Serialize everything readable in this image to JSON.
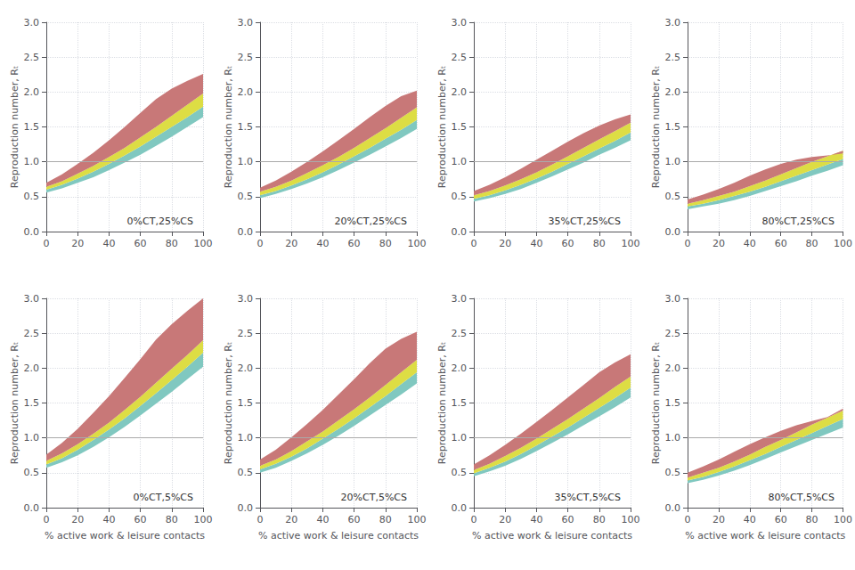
{
  "chart_data": [
    {
      "type": "band",
      "annotation": "0%CT,25%CS",
      "ylabel": "Reproduction number, Rₜ",
      "x": [
        0,
        10,
        20,
        30,
        40,
        50,
        60,
        70,
        80,
        90,
        100
      ],
      "xlim": [
        0,
        100
      ],
      "xticks": [
        0,
        20,
        40,
        60,
        80,
        100
      ],
      "ylim": [
        0,
        3
      ],
      "yticks": [
        {
          "value": 0,
          "label": "0.0"
        },
        0.5,
        {
          "value": 1,
          "label": "1.0"
        },
        1.5,
        {
          "value": 2,
          "label": "2.0"
        },
        2.5,
        {
          "value": 3,
          "label": "3.0"
        }
      ],
      "grid": true,
      "reference_line": {
        "y": 1.0,
        "color": "#aaaaaa"
      },
      "series": [
        {
          "color": "#80C8C0",
          "low": [
            0.56,
            0.62,
            0.7,
            0.78,
            0.88,
            0.99,
            1.1,
            1.23,
            1.36,
            1.5,
            1.64
          ],
          "high": [
            0.6,
            0.67,
            0.76,
            0.86,
            0.97,
            1.09,
            1.22,
            1.36,
            1.5,
            1.64,
            1.79
          ]
        },
        {
          "color": "#DDDD44",
          "low": [
            0.6,
            0.67,
            0.76,
            0.86,
            0.97,
            1.09,
            1.22,
            1.36,
            1.5,
            1.64,
            1.79
          ],
          "high": [
            0.64,
            0.72,
            0.83,
            0.94,
            1.07,
            1.2,
            1.35,
            1.5,
            1.66,
            1.82,
            1.98
          ]
        },
        {
          "color": "#C87878",
          "low": [
            0.64,
            0.72,
            0.83,
            0.94,
            1.07,
            1.2,
            1.35,
            1.5,
            1.66,
            1.82,
            1.98
          ],
          "high": [
            0.7,
            0.82,
            0.97,
            1.13,
            1.31,
            1.5,
            1.7,
            1.9,
            2.05,
            2.16,
            2.26
          ]
        }
      ]
    },
    {
      "type": "band",
      "annotation": "20%CT,25%CS",
      "ylabel": "Reproduction number, Rₜ",
      "x": [
        0,
        10,
        20,
        30,
        40,
        50,
        60,
        70,
        80,
        90,
        100
      ],
      "xlim": [
        0,
        100
      ],
      "xticks": [
        0,
        20,
        40,
        60,
        80,
        100
      ],
      "ylim": [
        0,
        3
      ],
      "yticks": [
        {
          "value": 0,
          "label": "0.0"
        },
        0.5,
        {
          "value": 1,
          "label": "1.0"
        },
        1.5,
        {
          "value": 2,
          "label": "2.0"
        },
        2.5,
        {
          "value": 3,
          "label": "3.0"
        }
      ],
      "grid": true,
      "reference_line": {
        "y": 1.0,
        "color": "#aaaaaa"
      },
      "series": [
        {
          "color": "#80C8C0",
          "low": [
            0.48,
            0.54,
            0.61,
            0.69,
            0.78,
            0.88,
            0.99,
            1.1,
            1.22,
            1.34,
            1.47
          ],
          "high": [
            0.52,
            0.58,
            0.66,
            0.75,
            0.85,
            0.96,
            1.08,
            1.2,
            1.33,
            1.46,
            1.6
          ]
        },
        {
          "color": "#DDDD44",
          "low": [
            0.52,
            0.58,
            0.66,
            0.75,
            0.85,
            0.96,
            1.08,
            1.2,
            1.33,
            1.46,
            1.6
          ],
          "high": [
            0.57,
            0.64,
            0.73,
            0.84,
            0.95,
            1.07,
            1.2,
            1.34,
            1.48,
            1.63,
            1.78
          ]
        },
        {
          "color": "#C87878",
          "low": [
            0.57,
            0.64,
            0.73,
            0.84,
            0.95,
            1.07,
            1.2,
            1.34,
            1.48,
            1.63,
            1.78
          ],
          "high": [
            0.63,
            0.73,
            0.86,
            1.0,
            1.15,
            1.31,
            1.47,
            1.64,
            1.8,
            1.94,
            2.02
          ]
        }
      ]
    },
    {
      "type": "band",
      "annotation": "35%CT,25%CS",
      "ylabel": "Reproduction number, Rₜ",
      "x": [
        0,
        10,
        20,
        30,
        40,
        50,
        60,
        70,
        80,
        90,
        100
      ],
      "xlim": [
        0,
        100
      ],
      "xticks": [
        0,
        20,
        40,
        60,
        80,
        100
      ],
      "ylim": [
        0,
        3
      ],
      "yticks": [
        {
          "value": 0,
          "label": "0.0"
        },
        0.5,
        {
          "value": 1,
          "label": "1.0"
        },
        1.5,
        {
          "value": 2,
          "label": "2.0"
        },
        2.5,
        {
          "value": 3,
          "label": "3.0"
        }
      ],
      "grid": true,
      "reference_line": {
        "y": 1.0,
        "color": "#aaaaaa"
      },
      "series": [
        {
          "color": "#80C8C0",
          "low": [
            0.43,
            0.48,
            0.54,
            0.61,
            0.7,
            0.79,
            0.89,
            0.99,
            1.1,
            1.2,
            1.31
          ],
          "high": [
            0.47,
            0.52,
            0.59,
            0.67,
            0.76,
            0.86,
            0.97,
            1.08,
            1.19,
            1.3,
            1.42
          ]
        },
        {
          "color": "#DDDD44",
          "low": [
            0.47,
            0.52,
            0.59,
            0.67,
            0.76,
            0.86,
            0.97,
            1.08,
            1.19,
            1.3,
            1.42
          ],
          "high": [
            0.52,
            0.58,
            0.66,
            0.75,
            0.85,
            0.96,
            1.08,
            1.2,
            1.32,
            1.44,
            1.56
          ]
        },
        {
          "color": "#C87878",
          "low": [
            0.52,
            0.58,
            0.66,
            0.75,
            0.85,
            0.96,
            1.08,
            1.2,
            1.32,
            1.44,
            1.56
          ],
          "high": [
            0.58,
            0.67,
            0.78,
            0.9,
            1.03,
            1.16,
            1.29,
            1.41,
            1.52,
            1.61,
            1.68
          ]
        }
      ]
    },
    {
      "type": "band",
      "annotation": "80%CT,25%CS",
      "ylabel": "Reproduction number, Rₜ",
      "x": [
        0,
        10,
        20,
        30,
        40,
        50,
        60,
        70,
        80,
        90,
        100
      ],
      "xlim": [
        0,
        100
      ],
      "xticks": [
        0,
        20,
        40,
        60,
        80,
        100
      ],
      "ylim": [
        0,
        3
      ],
      "yticks": [
        {
          "value": 0,
          "label": "0.0"
        },
        0.5,
        {
          "value": 1,
          "label": "1.0"
        },
        1.5,
        {
          "value": 2,
          "label": "2.0"
        },
        2.5,
        {
          "value": 3,
          "label": "3.0"
        }
      ],
      "grid": true,
      "reference_line": {
        "y": 1.0,
        "color": "#aaaaaa"
      },
      "series": [
        {
          "color": "#80C8C0",
          "low": [
            0.32,
            0.36,
            0.4,
            0.45,
            0.51,
            0.58,
            0.65,
            0.72,
            0.8,
            0.87,
            0.95
          ],
          "high": [
            0.36,
            0.4,
            0.45,
            0.51,
            0.57,
            0.64,
            0.72,
            0.8,
            0.88,
            0.96,
            1.04
          ]
        },
        {
          "color": "#DDDD44",
          "low": [
            0.36,
            0.4,
            0.45,
            0.51,
            0.57,
            0.64,
            0.72,
            0.8,
            0.88,
            0.96,
            1.04
          ],
          "high": [
            0.4,
            0.45,
            0.51,
            0.57,
            0.65,
            0.73,
            0.82,
            0.91,
            1.0,
            1.08,
            1.16
          ]
        },
        {
          "color": "#C87878",
          "low": [
            0.4,
            0.45,
            0.51,
            0.57,
            0.65,
            0.73,
            0.82,
            0.91,
            1.0,
            1.08,
            1.16
          ],
          "high": [
            0.46,
            0.53,
            0.61,
            0.7,
            0.8,
            0.89,
            0.97,
            1.03,
            1.07,
            1.09,
            1.12
          ]
        }
      ]
    },
    {
      "type": "band",
      "annotation": "0%CT,5%CS",
      "ylabel": "Reproduction number, Rₜ",
      "xlabel": "% active work & leisure contacts",
      "x": [
        0,
        10,
        20,
        30,
        40,
        50,
        60,
        70,
        80,
        90,
        100
      ],
      "xlim": [
        0,
        100
      ],
      "xticks": [
        0,
        20,
        40,
        60,
        80,
        100
      ],
      "ylim": [
        0,
        3
      ],
      "yticks": [
        {
          "value": 0,
          "label": "0.0"
        },
        0.5,
        {
          "value": 1,
          "label": "1.0"
        },
        1.5,
        {
          "value": 2,
          "label": "2.0"
        },
        2.5,
        {
          "value": 3,
          "label": "3.0"
        }
      ],
      "grid": true,
      "reference_line": {
        "y": 1.0,
        "color": "#aaaaaa"
      },
      "series": [
        {
          "color": "#80C8C0",
          "low": [
            0.57,
            0.65,
            0.75,
            0.87,
            1.01,
            1.16,
            1.32,
            1.49,
            1.66,
            1.84,
            2.02
          ],
          "high": [
            0.62,
            0.71,
            0.83,
            0.97,
            1.12,
            1.28,
            1.46,
            1.64,
            1.83,
            2.02,
            2.22
          ]
        },
        {
          "color": "#DDDD44",
          "low": [
            0.62,
            0.71,
            0.83,
            0.97,
            1.12,
            1.28,
            1.46,
            1.64,
            1.83,
            2.02,
            2.22
          ],
          "high": [
            0.67,
            0.78,
            0.91,
            1.06,
            1.22,
            1.4,
            1.59,
            1.79,
            1.99,
            2.19,
            2.4
          ]
        },
        {
          "color": "#C87878",
          "low": [
            0.67,
            0.78,
            0.91,
            1.06,
            1.22,
            1.4,
            1.59,
            1.79,
            1.99,
            2.19,
            2.4
          ],
          "high": [
            0.76,
            0.93,
            1.13,
            1.36,
            1.6,
            1.86,
            2.13,
            2.41,
            2.63,
            2.82,
            3.0
          ]
        }
      ]
    },
    {
      "type": "band",
      "annotation": "20%CT,5%CS",
      "ylabel": "Reproduction number, Rₜ",
      "xlabel": "% active work & leisure contacts",
      "x": [
        0,
        10,
        20,
        30,
        40,
        50,
        60,
        70,
        80,
        90,
        100
      ],
      "xlim": [
        0,
        100
      ],
      "xticks": [
        0,
        20,
        40,
        60,
        80,
        100
      ],
      "ylim": [
        0,
        3
      ],
      "yticks": [
        {
          "value": 0,
          "label": "0.0"
        },
        0.5,
        {
          "value": 1,
          "label": "1.0"
        },
        1.5,
        {
          "value": 2,
          "label": "2.0"
        },
        2.5,
        {
          "value": 3,
          "label": "3.0"
        }
      ],
      "grid": true,
      "reference_line": {
        "y": 1.0,
        "color": "#aaaaaa"
      },
      "series": [
        {
          "color": "#80C8C0",
          "low": [
            0.5,
            0.57,
            0.67,
            0.78,
            0.9,
            1.03,
            1.17,
            1.32,
            1.47,
            1.62,
            1.78
          ],
          "high": [
            0.55,
            0.63,
            0.73,
            0.85,
            0.99,
            1.13,
            1.28,
            1.44,
            1.6,
            1.77,
            1.94
          ]
        },
        {
          "color": "#DDDD44",
          "low": [
            0.55,
            0.63,
            0.73,
            0.85,
            0.99,
            1.13,
            1.28,
            1.44,
            1.6,
            1.77,
            1.94
          ],
          "high": [
            0.6,
            0.69,
            0.81,
            0.95,
            1.09,
            1.25,
            1.41,
            1.58,
            1.76,
            1.94,
            2.12
          ]
        },
        {
          "color": "#C87878",
          "low": [
            0.6,
            0.69,
            0.81,
            0.95,
            1.09,
            1.25,
            1.41,
            1.58,
            1.76,
            1.94,
            2.12
          ],
          "high": [
            0.69,
            0.83,
            1.01,
            1.2,
            1.4,
            1.62,
            1.84,
            2.07,
            2.28,
            2.42,
            2.52
          ]
        }
      ]
    },
    {
      "type": "band",
      "annotation": "35%CT,5%CS",
      "ylabel": "Reproduction number, Rₜ",
      "xlabel": "% active work & leisure contacts",
      "x": [
        0,
        10,
        20,
        30,
        40,
        50,
        60,
        70,
        80,
        90,
        100
      ],
      "xlim": [
        0,
        100
      ],
      "xticks": [
        0,
        20,
        40,
        60,
        80,
        100
      ],
      "ylim": [
        0,
        3
      ],
      "yticks": [
        {
          "value": 0,
          "label": "0.0"
        },
        0.5,
        {
          "value": 1,
          "label": "1.0"
        },
        1.5,
        {
          "value": 2,
          "label": "2.0"
        },
        2.5,
        {
          "value": 3,
          "label": "3.0"
        }
      ],
      "grid": true,
      "reference_line": {
        "y": 1.0,
        "color": "#aaaaaa"
      },
      "series": [
        {
          "color": "#80C8C0",
          "low": [
            0.45,
            0.52,
            0.6,
            0.7,
            0.81,
            0.93,
            1.05,
            1.18,
            1.31,
            1.44,
            1.58
          ],
          "high": [
            0.49,
            0.57,
            0.66,
            0.77,
            0.89,
            1.02,
            1.15,
            1.29,
            1.43,
            1.57,
            1.72
          ]
        },
        {
          "color": "#DDDD44",
          "low": [
            0.49,
            0.57,
            0.66,
            0.77,
            0.89,
            1.02,
            1.15,
            1.29,
            1.43,
            1.57,
            1.72
          ],
          "high": [
            0.54,
            0.63,
            0.74,
            0.86,
            0.99,
            1.13,
            1.27,
            1.42,
            1.57,
            1.73,
            1.88
          ]
        },
        {
          "color": "#C87878",
          "low": [
            0.54,
            0.63,
            0.74,
            0.86,
            0.99,
            1.13,
            1.27,
            1.42,
            1.57,
            1.73,
            1.88
          ],
          "high": [
            0.62,
            0.75,
            0.9,
            1.06,
            1.23,
            1.4,
            1.58,
            1.76,
            1.94,
            2.08,
            2.2
          ]
        }
      ]
    },
    {
      "type": "band",
      "annotation": "80%CT,5%CS",
      "ylabel": "Reproduction number, Rₜ",
      "xlabel": "% active work & leisure contacts",
      "x": [
        0,
        10,
        20,
        30,
        40,
        50,
        60,
        70,
        80,
        90,
        100
      ],
      "xlim": [
        0,
        100
      ],
      "xticks": [
        0,
        20,
        40,
        60,
        80,
        100
      ],
      "ylim": [
        0,
        3
      ],
      "yticks": [
        {
          "value": 0,
          "label": "0.0"
        },
        0.5,
        {
          "value": 1,
          "label": "1.0"
        },
        1.5,
        {
          "value": 2,
          "label": "2.0"
        },
        2.5,
        {
          "value": 3,
          "label": "3.0"
        }
      ],
      "grid": true,
      "reference_line": {
        "y": 1.0,
        "color": "#aaaaaa"
      },
      "series": [
        {
          "color": "#80C8C0",
          "low": [
            0.35,
            0.4,
            0.46,
            0.53,
            0.61,
            0.7,
            0.79,
            0.88,
            0.97,
            1.06,
            1.15
          ],
          "high": [
            0.39,
            0.44,
            0.51,
            0.59,
            0.68,
            0.77,
            0.87,
            0.97,
            1.07,
            1.17,
            1.27
          ]
        },
        {
          "color": "#DDDD44",
          "low": [
            0.39,
            0.44,
            0.51,
            0.59,
            0.68,
            0.77,
            0.87,
            0.97,
            1.07,
            1.17,
            1.27
          ],
          "high": [
            0.43,
            0.5,
            0.57,
            0.66,
            0.76,
            0.87,
            0.97,
            1.08,
            1.19,
            1.29,
            1.39
          ]
        },
        {
          "color": "#C87878",
          "low": [
            0.43,
            0.5,
            0.57,
            0.66,
            0.76,
            0.87,
            0.97,
            1.08,
            1.19,
            1.29,
            1.39
          ],
          "high": [
            0.5,
            0.59,
            0.69,
            0.8,
            0.91,
            1.01,
            1.1,
            1.18,
            1.24,
            1.3,
            1.42
          ]
        }
      ]
    }
  ]
}
